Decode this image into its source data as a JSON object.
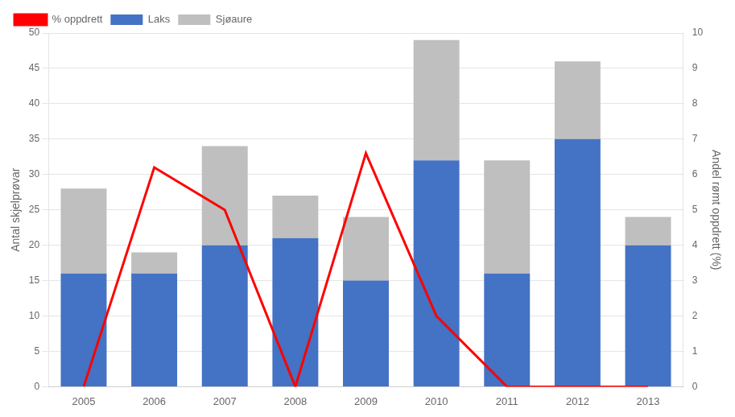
{
  "chart_data": {
    "type": "bar",
    "stacked": true,
    "categories": [
      "2005",
      "2006",
      "2007",
      "2008",
      "2009",
      "2010",
      "2011",
      "2012",
      "2013"
    ],
    "series": [
      {
        "name": "Laks",
        "color": "#4472C4",
        "values": [
          16,
          16,
          20,
          21,
          15,
          32,
          16,
          35,
          20
        ]
      },
      {
        "name": "Sjøaure",
        "color": "#BFBFBF",
        "values": [
          12,
          3,
          14,
          6,
          9,
          17,
          16,
          11,
          4
        ]
      },
      {
        "name": "% oppdrett",
        "type": "line",
        "axis": "y2",
        "color": "#FF0000",
        "values": [
          0.0,
          6.2,
          5.0,
          0.0,
          6.6,
          2.0,
          0.0,
          0.0,
          0.0
        ]
      }
    ],
    "ylabel": "Antal skjelprøvar",
    "y2label": "Andel rømt oppdrett (%)",
    "ylim": [
      0,
      50
    ],
    "yticks": [
      0,
      5,
      10,
      15,
      20,
      25,
      30,
      35,
      40,
      45,
      50
    ],
    "y2lim": [
      0,
      10
    ],
    "y2ticks": [
      0,
      1,
      2,
      3,
      4,
      5,
      6,
      7,
      8,
      9,
      10
    ],
    "grid": true,
    "legend": "upper left"
  }
}
